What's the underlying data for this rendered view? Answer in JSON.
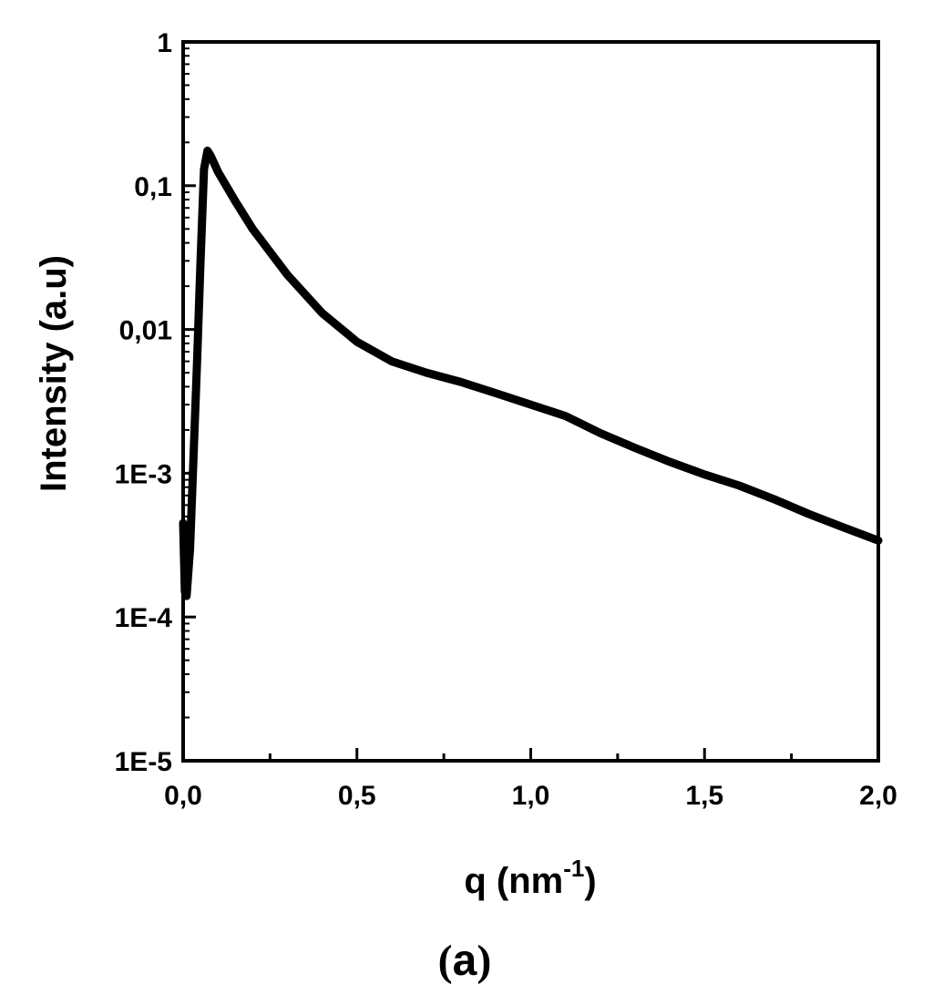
{
  "chart_data": {
    "type": "line",
    "xlabel": "q (nm",
    "xlabel_sup": "-1",
    "xlabel_close": ")",
    "ylabel": "Intensity (a.u)",
    "caption_open": "(",
    "caption_letter": "a",
    "caption_close": ")",
    "xlim": [
      0.0,
      2.0
    ],
    "ylim": [
      1e-05,
      1
    ],
    "yscale": "log",
    "grid": false,
    "line_color": "#000000",
    "x_ticks": [
      {
        "value": 0.0,
        "label": "0,0"
      },
      {
        "value": 0.5,
        "label": "0,5"
      },
      {
        "value": 1.0,
        "label": "1,0"
      },
      {
        "value": 1.5,
        "label": "1,5"
      },
      {
        "value": 2.0,
        "label": "2,0"
      }
    ],
    "y_ticks": [
      {
        "value": 1e-05,
        "label": "1E-5"
      },
      {
        "value": 0.0001,
        "label": "1E-4"
      },
      {
        "value": 0.001,
        "label": "1E-3"
      },
      {
        "value": 0.01,
        "label": "0,01"
      },
      {
        "value": 0.1,
        "label": "0,1"
      },
      {
        "value": 1,
        "label": "1"
      }
    ],
    "series": [
      {
        "x": [
          0.0,
          0.005,
          0.01,
          0.02,
          0.03,
          0.04,
          0.05,
          0.06,
          0.07,
          0.08,
          0.1,
          0.15,
          0.2,
          0.3,
          0.4,
          0.5,
          0.6,
          0.7,
          0.8,
          0.9,
          1.0,
          1.1,
          1.2,
          1.3,
          1.4,
          1.5,
          1.6,
          1.7,
          1.8,
          1.9,
          2.0
        ],
        "y": [
          0.00045,
          0.00015,
          0.00014,
          0.0003,
          0.0013,
          0.006,
          0.03,
          0.13,
          0.175,
          0.16,
          0.125,
          0.078,
          0.05,
          0.024,
          0.013,
          0.0082,
          0.006,
          0.005,
          0.0043,
          0.0036,
          0.003,
          0.0025,
          0.0019,
          0.0015,
          0.0012,
          0.00098,
          0.00082,
          0.00066,
          0.00052,
          0.00042,
          0.00034
        ]
      }
    ]
  }
}
